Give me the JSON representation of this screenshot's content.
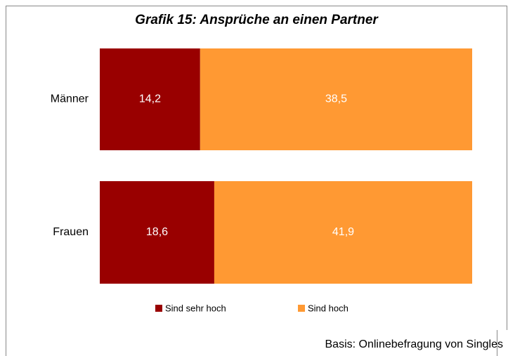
{
  "chart_data": {
    "type": "bar",
    "orientation": "horizontal",
    "stacking": "percent",
    "title": "Grafik 15: Ansprüche an einen Partner",
    "categories": [
      "Männer",
      "Frauen"
    ],
    "series": [
      {
        "name": "Sind sehr hoch",
        "color": "#990000",
        "values": [
          14.2,
          18.6
        ],
        "value_labels": [
          "14,2",
          "18,6"
        ]
      },
      {
        "name": "Sind hoch",
        "color": "#ff9933",
        "values": [
          38.5,
          41.9
        ],
        "value_labels": [
          "38,5",
          "41,9"
        ]
      }
    ],
    "legend": "bottom",
    "note": "Basis: Onlinebefragung von Singles"
  }
}
